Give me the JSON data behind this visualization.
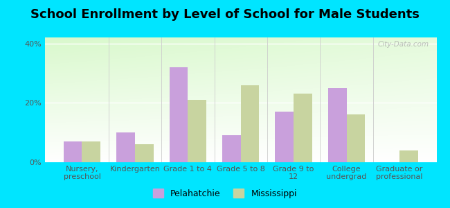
{
  "title": "School Enrollment by Level of School for Male Students",
  "categories": [
    "Nursery,\npreschool",
    "Kindergarten",
    "Grade 1 to 4",
    "Grade 5 to 8",
    "Grade 9 to\n12",
    "College\nundergrad",
    "Graduate or\nprofessional"
  ],
  "pelahatchie": [
    7,
    10,
    32,
    9,
    17,
    25,
    0
  ],
  "mississippi": [
    7,
    6,
    21,
    26,
    23,
    16,
    4
  ],
  "pelahatchie_color": "#c9a0dc",
  "mississippi_color": "#c8d4a0",
  "background_color": "#00e5ff",
  "ylabel_ticks": [
    "0%",
    "20%",
    "40%"
  ],
  "yticks": [
    0,
    20,
    40
  ],
  "ylim": [
    0,
    42
  ],
  "legend_labels": [
    "Pelahatchie",
    "Mississippi"
  ],
  "title_fontsize": 13,
  "tick_fontsize": 8,
  "watermark": "City-Data.com"
}
